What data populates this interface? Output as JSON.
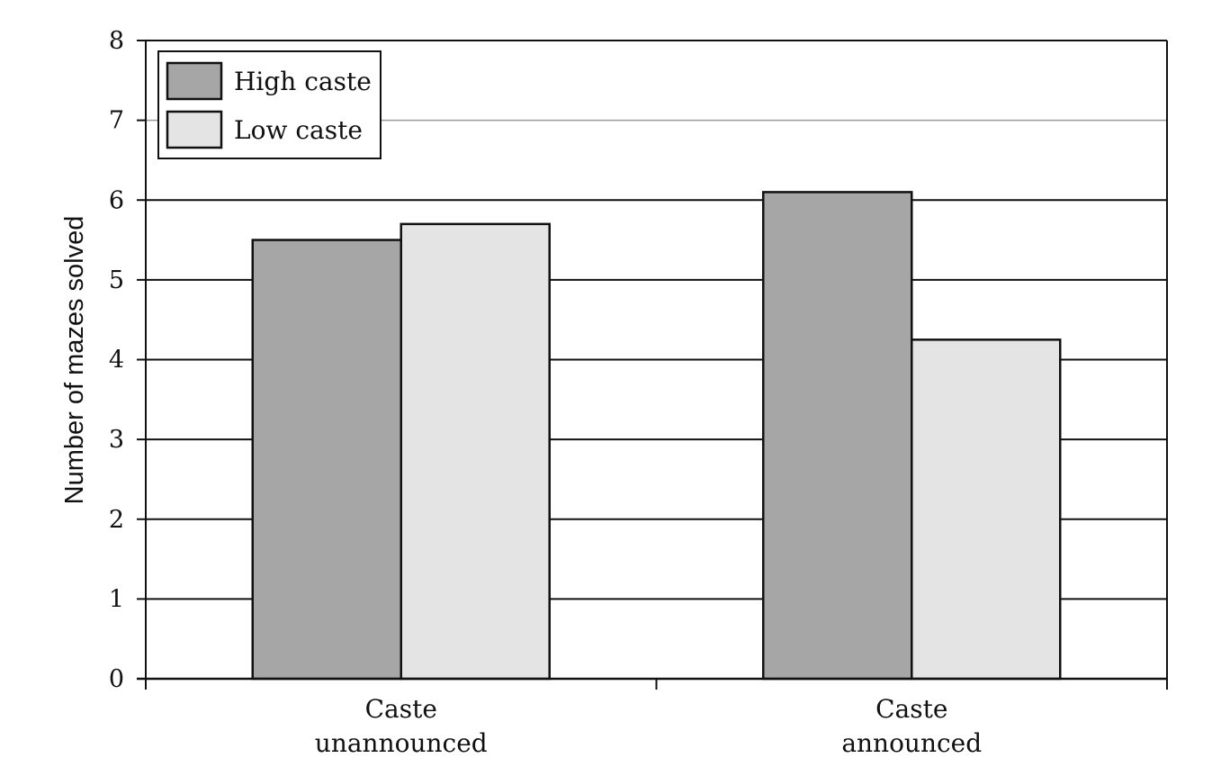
{
  "chart_data": {
    "type": "bar",
    "categories": [
      "Caste\nunannounced",
      "Caste\nannounced"
    ],
    "series": [
      {
        "name": "High caste",
        "values": [
          5.5,
          6.1
        ],
        "color": "#a6a6a6"
      },
      {
        "name": "Low caste",
        "values": [
          5.7,
          4.25
        ],
        "color": "#e4e4e4"
      }
    ],
    "title": "",
    "xlabel": "",
    "ylabel": "Number of mazes solved",
    "ylim": [
      0,
      8
    ],
    "yticks": [
      "0",
      "1",
      "2",
      "3",
      "4",
      "5",
      "6",
      "7",
      "8"
    ],
    "grid": true,
    "legend_position": "top-left"
  }
}
